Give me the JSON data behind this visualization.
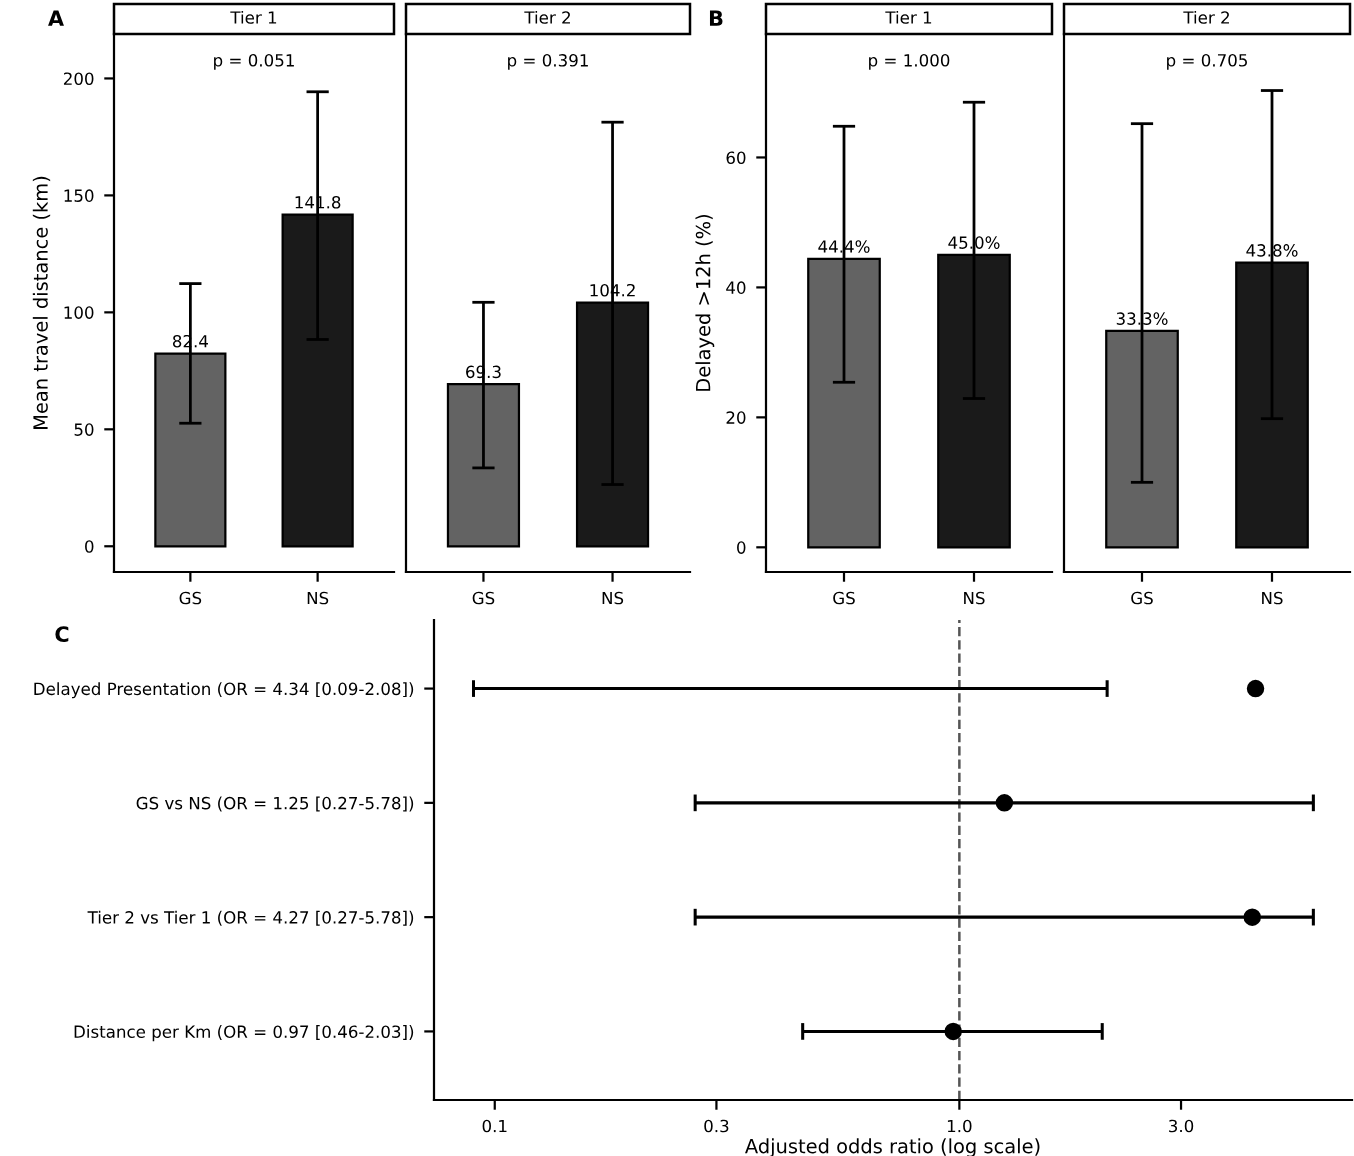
{
  "chart_data": [
    {
      "type": "bar",
      "title": "A",
      "subtitle": "Tier 1",
      "ylabel": "Mean travel distance (km)",
      "categories": [
        "GS",
        "NS"
      ],
      "values": [
        82.4,
        141.8
      ],
      "colors": [
        "#636363",
        "#1a1a1a"
      ],
      "errors": [
        [
          52.6,
          112.3
        ],
        [
          88.4,
          194.3
        ]
      ],
      "data_labels": true,
      "ylim": [
        -11,
        219
      ],
      "yticks": [
        0,
        50,
        100,
        150,
        200
      ],
      "annotations": [
        "p = 0.051"
      ],
      "grid": false
    },
    {
      "type": "bar",
      "subtitle": "Tier 2",
      "categories": [
        "GS",
        "NS"
      ],
      "values": [
        69.3,
        104.2
      ],
      "colors": [
        "#636363",
        "#1a1a1a"
      ],
      "errors": [
        [
          33.5,
          104.3
        ],
        [
          26.4,
          181.3
        ]
      ],
      "data_labels": true,
      "ylim": [
        -11,
        219
      ],
      "yticks": [
        0,
        50,
        100,
        150,
        200
      ],
      "tick_labels": "x",
      "annotations": [
        "p = 0.391"
      ],
      "grid": false
    },
    {
      "type": "bar",
      "title": "B",
      "subtitle": "Tier 1",
      "ylabel": "Delayed >12h (%)",
      "categories": [
        "GS",
        "NS"
      ],
      "values": [
        44.4,
        45.0
      ],
      "colors": [
        "#636363",
        "#1a1a1a"
      ],
      "errors": [
        [
          25.4,
          64.8
        ],
        [
          22.9,
          68.5
        ]
      ],
      "value_labels": [
        "44.4%",
        "45.0%"
      ],
      "ylim": [
        -3.8,
        79
      ],
      "yticks": [
        0,
        20,
        40,
        60
      ],
      "annotations": [
        "p = 1.000"
      ],
      "grid": false
    },
    {
      "type": "bar",
      "subtitle": "Tier 2",
      "categories": [
        "GS",
        "NS"
      ],
      "values": [
        33.3,
        43.8
      ],
      "colors": [
        "#636363",
        "#1a1a1a"
      ],
      "errors": [
        [
          10.0,
          65.2
        ],
        [
          19.8,
          70.3
        ]
      ],
      "value_labels": [
        "33.3%",
        "43.8%"
      ],
      "ylim": [
        -3.8,
        79
      ],
      "yticks": [
        0,
        20,
        40,
        60
      ],
      "tick_labels": "x",
      "annotations": [
        "p = 0.705"
      ],
      "grid": false
    },
    {
      "type": "scatter",
      "title": "C",
      "orientation": "horizontal",
      "xlabel": "Adjusted odds ratio (log scale)",
      "categories": [
        "Delayed Presentation (OR = 4.34 [0.09-2.08])",
        "GS vs NS (OR = 1.25 [0.27-5.78])",
        "Tier 2 vs Tier 1 (OR = 4.27 [0.27-5.78])",
        "Distance per Km (OR = 0.97 [0.46-2.03])"
      ],
      "values": [
        4.34,
        1.25,
        4.27,
        0.97
      ],
      "color": "#000000",
      "marker": "circle",
      "errors": [
        [
          0.09,
          2.08
        ],
        [
          0.27,
          5.78
        ],
        [
          0.27,
          5.78
        ],
        [
          0.46,
          2.03
        ]
      ],
      "log": "x",
      "xlim": [
        0.074,
        7.0
      ],
      "xticks": [
        0.1,
        0.3,
        {
          "value": 1,
          "label": "1.0"
        },
        {
          "value": 3,
          "label": "3.0"
        }
      ],
      "ref_lines": [
        {
          "axis": "x",
          "value": 1,
          "line_style": "dashed",
          "color": "#555555"
        }
      ],
      "grid": false
    }
  ]
}
